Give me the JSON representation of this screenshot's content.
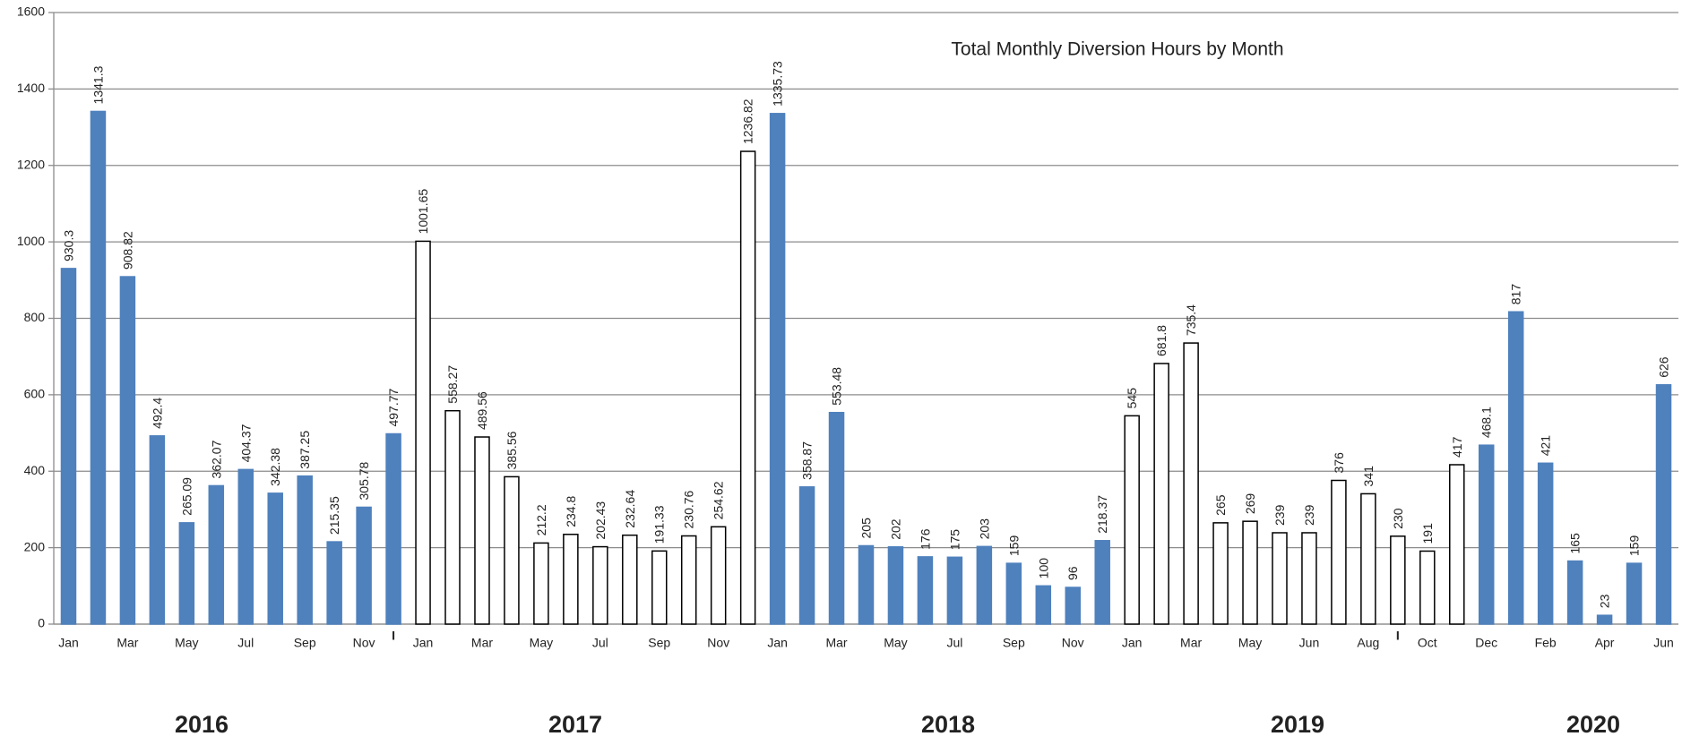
{
  "chart_data": {
    "type": "bar",
    "title": "Total Monthly Diversion Hours by Month",
    "categories": [
      "Jan",
      null,
      "Mar",
      null,
      "May",
      null,
      "Jul",
      null,
      "Sep",
      null,
      "Nov",
      "I",
      "Jan",
      null,
      "Mar",
      null,
      "May",
      null,
      "Jul",
      null,
      "Sep",
      null,
      "Nov",
      null,
      "Jan",
      null,
      "Mar",
      null,
      "May",
      null,
      "Jul",
      null,
      "Sep",
      null,
      "Nov",
      null,
      "Jan",
      null,
      "Mar",
      null,
      "May",
      null,
      "Jun",
      null,
      "Aug",
      "I",
      "Oct",
      null,
      "Dec",
      null,
      "Feb",
      null,
      "Apr",
      null,
      "Jun"
    ],
    "values": [
      930.3,
      1341.3,
      908.82,
      492.4,
      265.09,
      362.07,
      404.37,
      342.38,
      387.25,
      215.35,
      305.78,
      497.77,
      1001.65,
      558.27,
      489.56,
      385.56,
      212.2,
      234.8,
      202.43,
      232.64,
      191.33,
      230.76,
      254.62,
      1236.82,
      1335.73,
      358.87,
      553.48,
      205,
      202,
      176,
      175,
      203,
      159,
      100,
      96,
      218.37,
      545,
      681.8,
      735.4,
      265,
      269,
      239,
      239,
      376,
      341,
      230,
      191,
      417,
      468.1,
      817,
      421,
      165,
      23,
      159,
      626
    ],
    "colors": [
      "#4f81bd",
      "#4f81bd",
      "#4f81bd",
      "#4f81bd",
      "#4f81bd",
      "#4f81bd",
      "#4f81bd",
      "#4f81bd",
      "#4f81bd",
      "#4f81bd",
      "#4f81bd",
      "#4f81bd",
      "#ffffff",
      "#ffffff",
      "#ffffff",
      "#ffffff",
      "#ffffff",
      "#ffffff",
      "#ffffff",
      "#ffffff",
      "#ffffff",
      "#ffffff",
      "#ffffff",
      "#ffffff",
      "#4f81bd",
      "#4f81bd",
      "#4f81bd",
      "#4f81bd",
      "#4f81bd",
      "#4f81bd",
      "#4f81bd",
      "#4f81bd",
      "#4f81bd",
      "#4f81bd",
      "#4f81bd",
      "#4f81bd",
      "#ffffff",
      "#ffffff",
      "#ffffff",
      "#ffffff",
      "#ffffff",
      "#ffffff",
      "#ffffff",
      "#ffffff",
      "#ffffff",
      "#ffffff",
      "#ffffff",
      "#ffffff",
      "#4f81bd",
      "#4f81bd",
      "#4f81bd",
      "#4f81bd",
      "#4f81bd",
      "#4f81bd",
      "#4f81bd"
    ],
    "year_labels": [
      "2016",
      "2017",
      "2018",
      "2019",
      "2020"
    ],
    "ylim": [
      0,
      1600
    ],
    "yticks": [
      0,
      200,
      400,
      600,
      800,
      1000,
      1200,
      1400,
      1600
    ],
    "grid": true
  }
}
